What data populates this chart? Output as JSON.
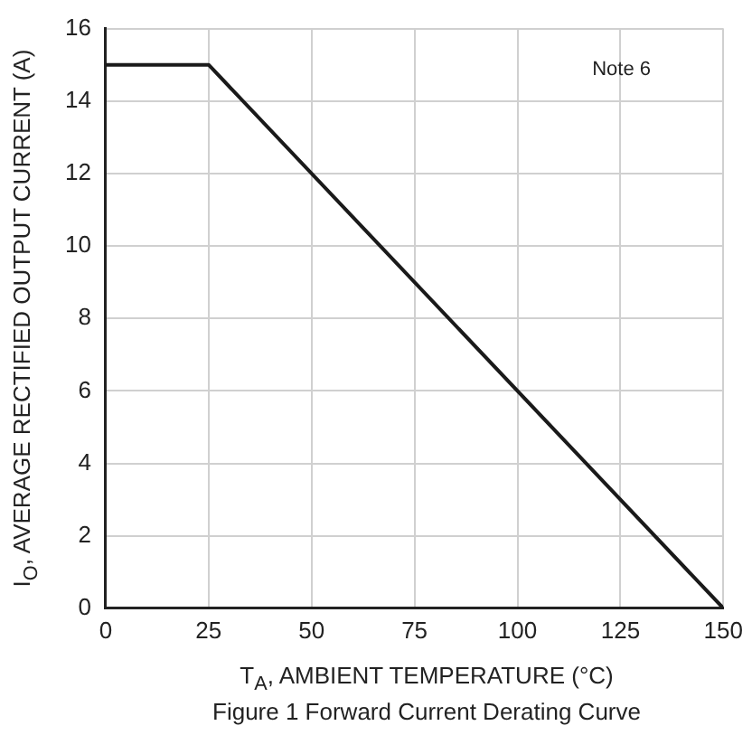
{
  "chart_data": {
    "type": "line",
    "xlabel": "T$_{A}$, AMBIENT TEMPERATURE (°C)",
    "ylabel": "I$_{O}$, AVERAGE RECTIFIED OUTPUT CURRENT (A)",
    "annotations": [
      "Note 6",
      "Figure 1 Forward Current Derating Curve"
    ],
    "series": [
      {
        "color": "#1a1a1a",
        "x": [
          0,
          25,
          150
        ],
        "values": [
          15,
          15,
          0
        ]
      }
    ],
    "xlim": [
      0,
      150
    ],
    "xticks": [
      0,
      25,
      50,
      75,
      100,
      125,
      150
    ],
    "ylim": [
      0,
      16
    ],
    "yticks": [
      0,
      2,
      4,
      6,
      8,
      10,
      12,
      14,
      16
    ],
    "grid": true,
    "legend": false,
    "marker": "none",
    "line_style": "solid"
  }
}
